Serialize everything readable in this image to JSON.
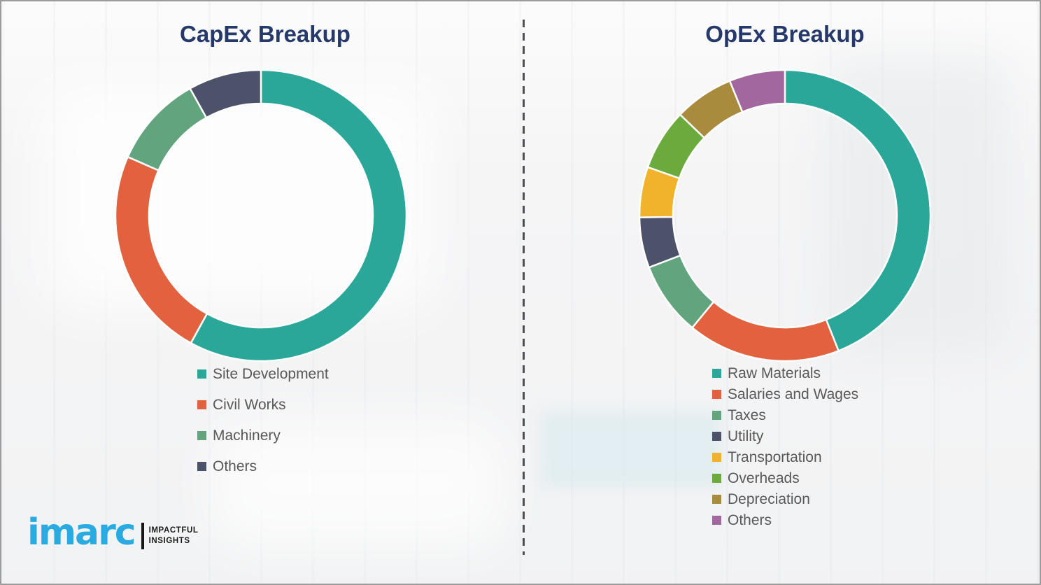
{
  "colors": {
    "title_navy": "#26396B",
    "legend_text_gray": "#595959",
    "logo_blue": "#29ABE2",
    "slice_gap_white": "#FFFFFF",
    "page_border_gray": "#9B9B9B"
  },
  "divider": {
    "style": "vertical-dashed-line"
  },
  "logo": {
    "brand": "imarc",
    "tagline_line1": "IMPACTFUL",
    "tagline_line2": "INSIGHTS"
  },
  "chart_data": [
    {
      "type": "pie",
      "subtype": "donut",
      "title": "CapEx Breakup",
      "direction": "clockwise",
      "start_angle_deg": 0,
      "legend_position": "below-left",
      "categories": [
        "Site Development",
        "Civil Works",
        "Machinery",
        "Others"
      ],
      "values": [
        58.0,
        23.6,
        10.3,
        8.1
      ],
      "value_unit": "% (estimated from arc angles)",
      "colors": [
        "#2BA79A",
        "#E2613F",
        "#61A47D",
        "#4C5269"
      ]
    },
    {
      "type": "pie",
      "subtype": "donut",
      "title": "OpEx Breakup",
      "direction": "clockwise",
      "start_angle_deg": 0,
      "legend_position": "below-left",
      "categories": [
        "Raw Materials",
        "Salaries and Wages",
        "Taxes",
        "Utility",
        "Transportation",
        "Overheads",
        "Depreciation",
        "Others"
      ],
      "values": [
        44.0,
        17.0,
        8.2,
        5.6,
        5.6,
        6.8,
        6.6,
        6.2
      ],
      "value_unit": "% (estimated from arc angles)",
      "colors": [
        "#2BA79A",
        "#E2613F",
        "#61A47D",
        "#4C5269",
        "#F2B32C",
        "#6BAB3E",
        "#A98B3D",
        "#A2679E"
      ]
    }
  ]
}
